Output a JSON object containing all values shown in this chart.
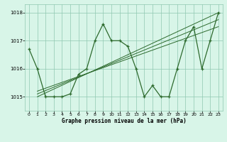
{
  "hours": [
    0,
    1,
    2,
    3,
    4,
    5,
    6,
    7,
    8,
    9,
    10,
    11,
    12,
    13,
    14,
    15,
    16,
    17,
    18,
    19,
    20,
    21,
    22,
    23
  ],
  "pressure": [
    1016.7,
    1016.0,
    1015.0,
    1015.0,
    1015.0,
    1015.1,
    1015.8,
    1016.0,
    1017.0,
    1017.6,
    1017.0,
    1017.0,
    1016.8,
    1016.0,
    1015.0,
    1015.4,
    1015.0,
    1015.0,
    1016.0,
    1017.0,
    1017.5,
    1016.0,
    1017.0,
    1018.0
  ],
  "line_color": "#2d6a2d",
  "bg_color": "#d8f5e8",
  "grid_color": "#90c8b0",
  "xlabel": "Graphe pression niveau de la mer (hPa)",
  "ylim": [
    1014.5,
    1018.3
  ],
  "xlim": [
    -0.5,
    23.5
  ],
  "yticks": [
    1015,
    1016,
    1017,
    1018
  ],
  "xticks": [
    0,
    1,
    2,
    3,
    4,
    5,
    6,
    7,
    8,
    9,
    10,
    11,
    12,
    13,
    14,
    15,
    16,
    17,
    18,
    19,
    20,
    21,
    22,
    23
  ],
  "trend_lines": [
    {
      "x0": 1,
      "y0": 1015.0,
      "x1": 23,
      "y1": 1018.0
    },
    {
      "x0": 1,
      "y0": 1015.1,
      "x1": 23,
      "y1": 1017.75
    },
    {
      "x0": 1,
      "y0": 1015.2,
      "x1": 23,
      "y1": 1017.5
    }
  ]
}
